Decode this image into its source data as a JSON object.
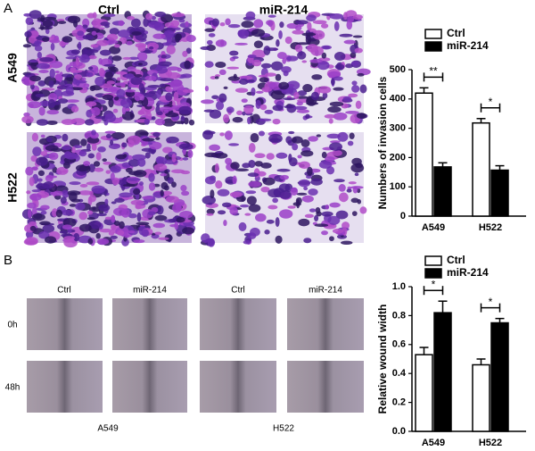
{
  "panel_a": {
    "label": "A",
    "columns": [
      "Ctrl",
      "miR-214"
    ],
    "rows": [
      "A549",
      "H522"
    ]
  },
  "panel_b": {
    "label": "B",
    "columns": [
      "Ctrl",
      "miR-214",
      "Ctrl",
      "miR-214"
    ],
    "rows": [
      "0h",
      "48h"
    ],
    "groups": [
      "A549",
      "H522"
    ]
  },
  "chart_data": [
    {
      "type": "bar",
      "ylabel": "Numbers of invasion cells",
      "categories": [
        "A549",
        "H522"
      ],
      "series": [
        {
          "name": "Ctrl",
          "color": "#ffffff",
          "values": [
            420,
            318
          ],
          "errors": [
            18,
            15
          ]
        },
        {
          "name": "miR-214",
          "color": "#000000",
          "values": [
            168,
            157
          ],
          "errors": [
            14,
            15
          ]
        }
      ],
      "ylim": [
        0,
        500
      ],
      "yticks": [
        0,
        100,
        200,
        300,
        400,
        500
      ],
      "annotations": [
        "**",
        "*"
      ]
    },
    {
      "type": "bar",
      "ylabel": "Relative wound width",
      "categories": [
        "A549",
        "H522"
      ],
      "series": [
        {
          "name": "Ctrl",
          "color": "#ffffff",
          "values": [
            0.53,
            0.46
          ],
          "errors": [
            0.05,
            0.04
          ]
        },
        {
          "name": "miR-214",
          "color": "#000000",
          "values": [
            0.82,
            0.75
          ],
          "errors": [
            0.08,
            0.03
          ]
        }
      ],
      "ylim": [
        0,
        1.0
      ],
      "yticks": [
        {
          "value": 0,
          "label": "0.0"
        },
        {
          "value": 0.2,
          "label": "0.2"
        },
        {
          "value": 0.4,
          "label": "0.4"
        },
        {
          "value": 0.6,
          "label": "0.6"
        },
        {
          "value": 0.8,
          "label": "0.8"
        },
        {
          "value": 1.0,
          "label": "1.0"
        }
      ],
      "annotations": [
        "*",
        "*"
      ]
    }
  ]
}
